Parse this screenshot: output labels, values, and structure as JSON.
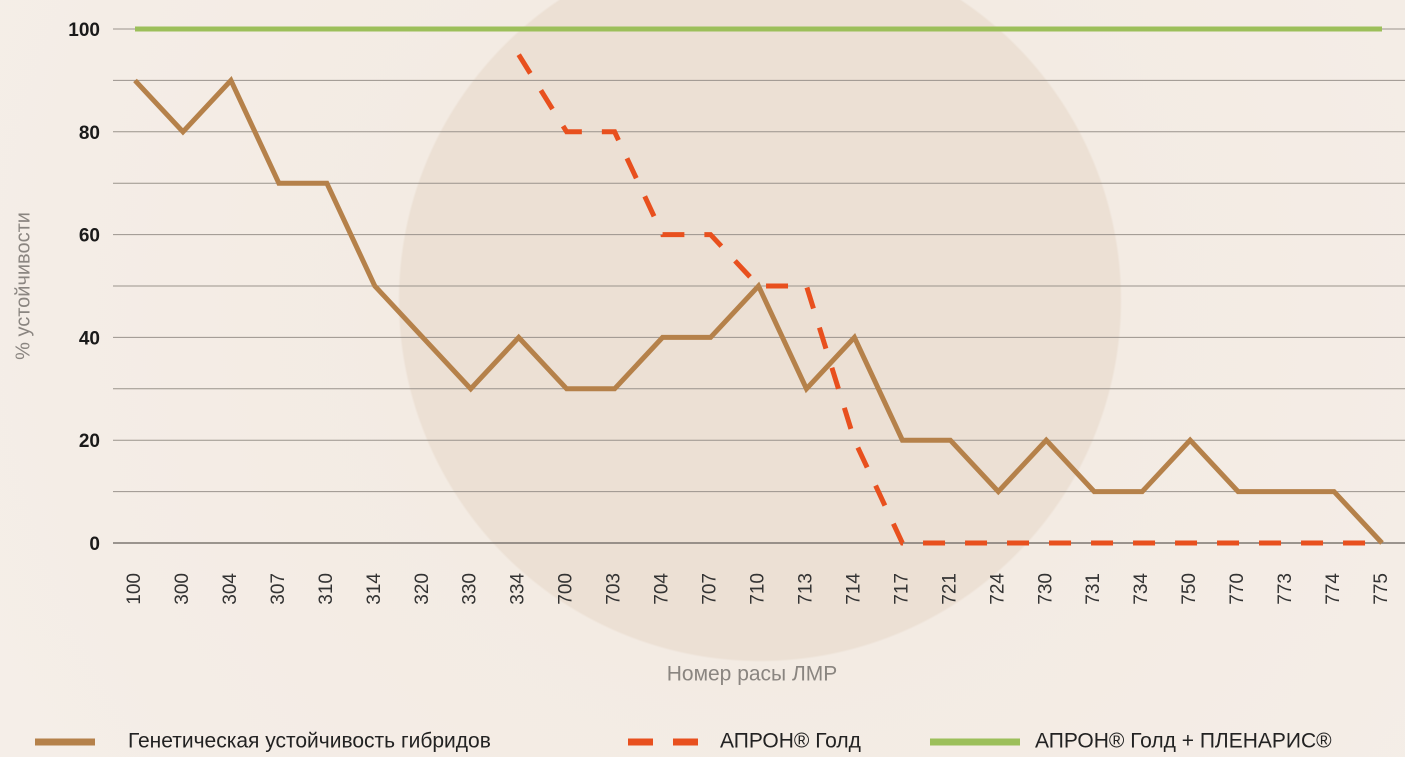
{
  "chart_data": {
    "type": "line",
    "x_label": "Номер расы ЛМР",
    "y_label": "% устойчивости",
    "categories": [
      "100",
      "300",
      "304",
      "307",
      "310",
      "314",
      "320",
      "330",
      "334",
      "700",
      "703",
      "704",
      "707",
      "710",
      "713",
      "714",
      "717",
      "721",
      "724",
      "730",
      "731",
      "734",
      "750",
      "770",
      "773",
      "774",
      "775"
    ],
    "series": [
      {
        "name": "Генетическая устойчивость гибридов",
        "color": "#b5814a",
        "dashed": false,
        "values": [
          90,
          80,
          90,
          70,
          70,
          50,
          40,
          30,
          40,
          30,
          30,
          40,
          40,
          50,
          30,
          40,
          20,
          20,
          10,
          20,
          10,
          10,
          20,
          10,
          10,
          10,
          0
        ]
      },
      {
        "name": "АПРОН® Голд",
        "color": "#e8501e",
        "dashed": true,
        "values": [
          null,
          null,
          null,
          null,
          null,
          null,
          null,
          null,
          95,
          80,
          80,
          60,
          60,
          50,
          50,
          20,
          0,
          0,
          0,
          0,
          0,
          0,
          0,
          0,
          0,
          0,
          0
        ]
      },
      {
        "name": "АПРОН® Голд + ПЛЕНАРИС®",
        "color": "#9cbf5a",
        "dashed": false,
        "values": [
          100,
          100,
          100,
          100,
          100,
          100,
          100,
          100,
          100,
          100,
          100,
          100,
          100,
          100,
          100,
          100,
          100,
          100,
          100,
          100,
          100,
          100,
          100,
          100,
          100,
          100,
          100
        ]
      }
    ],
    "ylim": [
      0,
      100
    ],
    "yticks": [
      0,
      20,
      40,
      60,
      80,
      100
    ],
    "minor_yticks": [
      10,
      30,
      50,
      70,
      90
    ],
    "grid": true,
    "legend": "bottom"
  }
}
